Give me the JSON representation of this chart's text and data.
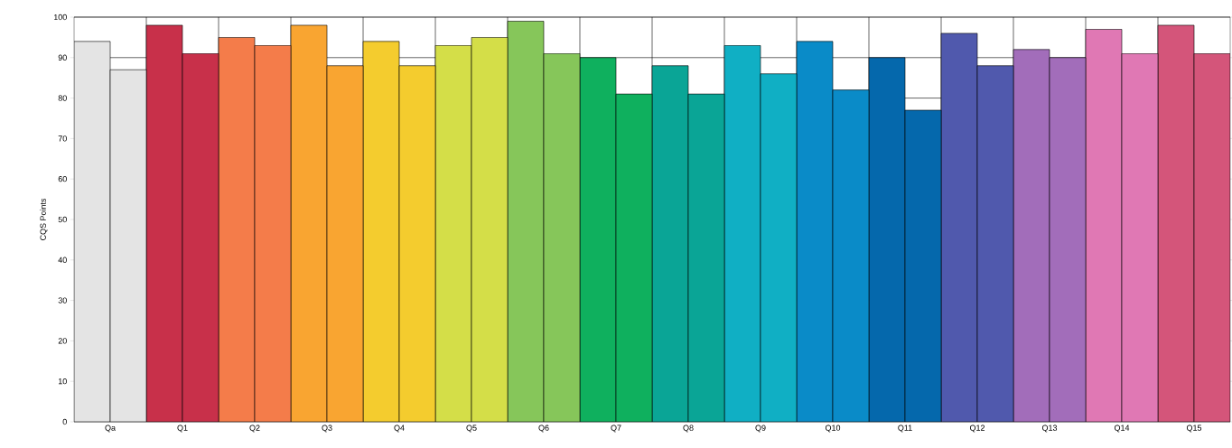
{
  "chart_data": {
    "type": "bar",
    "ylabel": "CQS Points",
    "categories": [
      "Qa",
      "Q1",
      "Q2",
      "Q3",
      "Q4",
      "Q5",
      "Q6",
      "Q7",
      "Q8",
      "Q9",
      "Q10",
      "Q11",
      "Q12",
      "Q13",
      "Q14",
      "Q15"
    ],
    "series": [
      {
        "colors": [
          "#e4e4e4",
          "#c8304a",
          "#f47c4a",
          "#f9a531",
          "#f4cc2e",
          "#d4de48",
          "#86c65a",
          "#0fb05e",
          "#0aa596",
          "#10afc4",
          "#0a8bc8",
          "#0568ac",
          "#5059ad",
          "#a26dba",
          "#e078b4",
          "#d4557a"
        ],
        "values": [
          94,
          98,
          95,
          98,
          94,
          93,
          99,
          90,
          88,
          93,
          94,
          90,
          96,
          92,
          97,
          98
        ]
      },
      {
        "colors": [
          "#e4e4e4",
          "#c8304a",
          "#f47c4a",
          "#f9a531",
          "#f4cc2e",
          "#d4de48",
          "#86c65a",
          "#0fb05e",
          "#0aa596",
          "#10afc4",
          "#0a8bc8",
          "#0568ac",
          "#5059ad",
          "#a26dba",
          "#e078b4",
          "#d4557a"
        ],
        "values": [
          87,
          91,
          93,
          88,
          88,
          95,
          91,
          81,
          81,
          86,
          82,
          77,
          88,
          90,
          91,
          91
        ]
      }
    ],
    "ylim": [
      0,
      100
    ],
    "yticks": [
      0,
      10,
      20,
      30,
      40,
      50,
      60,
      70,
      80,
      90,
      100
    ],
    "grid": true
  }
}
